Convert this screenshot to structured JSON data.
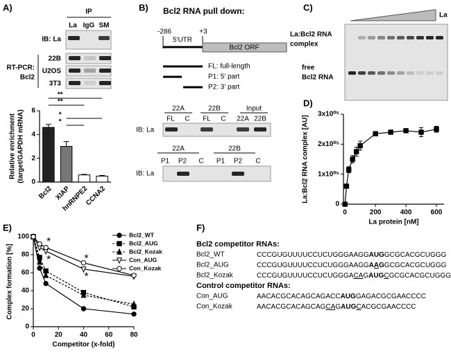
{
  "panel_a": {
    "letter": "A)",
    "ip": "IP",
    "lanes": [
      "La",
      "IgG",
      "SM"
    ],
    "ib": "IB: La",
    "rt_pcr": "RT-PCR:",
    "target": "Bcl2",
    "cells": [
      "22B",
      "U2OS",
      "3T3"
    ]
  },
  "panel_b": {
    "letter": "B)",
    "title": "Bcl2 RNA pull down:",
    "pos_start": "-286",
    "pos_end": "+3",
    "utr": "5'UTR",
    "orf": "Bcl2 ORF",
    "fragments": [
      "FL: full-length",
      "P1: 5' part",
      "P2: 3' part"
    ],
    "blot1": {
      "groups": [
        "22A",
        "22B",
        "Input"
      ],
      "lanes": [
        "FL",
        "C",
        "FL",
        "C",
        "22A",
        "22B"
      ],
      "ib": "IB: La"
    },
    "blot2": {
      "groups": [
        "22A",
        "22B"
      ],
      "lanes": [
        "P1",
        "P2",
        "C",
        "P1",
        "P2",
        "C"
      ],
      "ib": "IB: La"
    }
  },
  "panel_c": {
    "letter": "C)",
    "protein": "La",
    "complex": [
      "La:Bcl2 RNA",
      "complex"
    ],
    "free": [
      "free",
      "Bcl2 RNA"
    ]
  },
  "panel_d": {
    "letter": "D)"
  },
  "panel_e": {
    "letter": "E)"
  },
  "panel_f": {
    "letter": "F)",
    "groups": [
      {
        "title": "Bcl2 competitor RNAs:",
        "rows": [
          {
            "name": "Bcl2_WT",
            "segments": [
              {
                "text": "CCCGUGUUUUCCUCUGGGAAGG"
              },
              {
                "text": "AUG",
                "bold": true
              },
              {
                "text": "GCGCACGCUGGG"
              }
            ]
          },
          {
            "name": "Bcl2_AUG",
            "segments": [
              {
                "text": "CCCGUGUUUUCCUCUGGGAAGG"
              },
              {
                "text": "A",
                "bold": true
              },
              {
                "text": "A",
                "bold": true,
                "underline": true
              },
              {
                "text": "G",
                "bold": true
              },
              {
                "text": "GCGCACGCUGGG"
              }
            ]
          },
          {
            "name": "Bcl2_Kozak",
            "segments": [
              {
                "text": "CCCGUGUUUUCCUCUGGGA"
              },
              {
                "text": "CA",
                "underline": true
              },
              {
                "text": "G"
              },
              {
                "text": "AUG",
                "bold": true
              },
              {
                "text": "C",
                "underline": true
              },
              {
                "text": "GCGCACGCUGGG"
              }
            ]
          }
        ]
      },
      {
        "title": "Control competitor RNAs:",
        "rows": [
          {
            "name": "Con_AUG",
            "segments": [
              {
                "text": "AACACGCACAGCAGACC"
              },
              {
                "text": "AUG",
                "bold": true
              },
              {
                "text": "GAGACGCGAACCCC"
              }
            ]
          },
          {
            "name": "Con_Kozak",
            "segments": [
              {
                "text": "AACACGCACAGCAG"
              },
              {
                "text": "CA",
                "underline": true
              },
              {
                "text": "G"
              },
              {
                "text": "AUG",
                "bold": true
              },
              {
                "text": "C",
                "underline": true
              },
              {
                "text": "ACGCGAACCCC"
              }
            ]
          }
        ]
      }
    ]
  },
  "chart_data": [
    {
      "type": "bar",
      "y_label": [
        "Relative enrichment",
        "(target/GAPDH mRNA)"
      ],
      "categories": [
        "Bcl2",
        "XIAP",
        "hnRNPE2",
        "CCNA2"
      ],
      "values": [
        4.6,
        3.0,
        0.6,
        0.5
      ],
      "errors": [
        0.25,
        0.4,
        0.05,
        0.05
      ],
      "colors": [
        "#222222",
        "#777777",
        "#ffffff",
        "#ffffff"
      ],
      "ylim": [
        0,
        6
      ],
      "yticks": [
        0,
        2,
        4,
        6
      ],
      "annotations": [
        "**",
        "**",
        "*",
        "*"
      ]
    },
    {
      "type": "line",
      "x_label": "La protein [nM]",
      "y_label": "La:Bcl2 RNA complex [AU]",
      "x": [
        0,
        10,
        25,
        50,
        75,
        100,
        200,
        300,
        400,
        500,
        600
      ],
      "values": [
        0,
        60000,
        115000,
        150000,
        175000,
        195000,
        235000,
        240000,
        245000,
        240000,
        250000
      ],
      "errors": [
        0,
        5000,
        10000,
        12000,
        15000,
        15000,
        5000,
        5000,
        5000,
        15000,
        10000
      ],
      "color": "#000000",
      "xlim": [
        -10,
        650
      ],
      "xticks": [
        0,
        200,
        400,
        600
      ],
      "ylim": [
        0,
        300000
      ],
      "yticks": [
        0,
        {
          "value": 100000,
          "label": "1x10⁰⁵"
        },
        {
          "value": 200000,
          "label": "2x10⁰⁵"
        },
        {
          "value": 300000,
          "label": "3x10⁰⁵"
        }
      ]
    },
    {
      "type": "line",
      "x_label": "Competitor (x-fold)",
      "y_label": "Complex formation [%]",
      "x": [
        0,
        5,
        10,
        40,
        80
      ],
      "series": [
        {
          "name": "Bcl2_WT",
          "color": "#000000",
          "marker": "circle",
          "filled": true,
          "dashed": false,
          "values": [
            100,
            65,
            48,
            20,
            14
          ]
        },
        {
          "name": "Bcl2_AUG",
          "color": "#000000",
          "marker": "square",
          "filled": true,
          "dashed": true,
          "values": [
            100,
            77,
            62,
            38,
            22
          ]
        },
        {
          "name": "Bcl2_Kozak",
          "color": "#000000",
          "marker": "triangle",
          "filled": true,
          "dashed": true,
          "values": [
            100,
            72,
            57,
            35,
            25
          ]
        },
        {
          "name": "Con_AUG",
          "color": "#000000",
          "marker": "triangle-down",
          "filled": false,
          "dashed": false,
          "values": [
            100,
            88,
            84,
            64,
            56
          ]
        },
        {
          "name": "Con_Kozak",
          "color": "#000000",
          "marker": "circle",
          "filled": false,
          "dashed": false,
          "values": [
            100,
            92,
            88,
            71,
            57
          ]
        }
      ],
      "xlim": [
        0,
        80
      ],
      "xticks": [
        0,
        20,
        40,
        60,
        80
      ],
      "ylim": [
        0,
        100
      ],
      "yticks": [
        0,
        20,
        40,
        60,
        80,
        100
      ],
      "annotations": [
        "*",
        "*",
        "*",
        "*"
      ]
    }
  ]
}
